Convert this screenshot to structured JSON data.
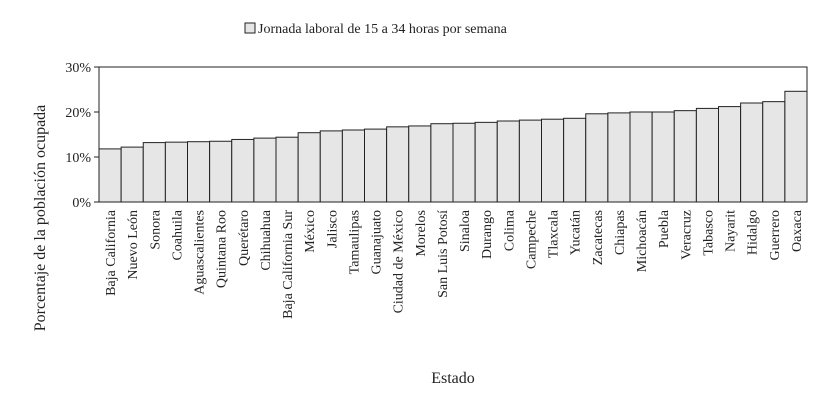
{
  "chart_data": {
    "type": "bar",
    "title": "",
    "xlabel": "Estado",
    "ylabel": "Porcentaje de la población ocupada",
    "legend": {
      "position": "top-center",
      "entries": [
        "Jornada laboral de 15 a 34 horas por semana"
      ]
    },
    "ylim": [
      0,
      30
    ],
    "yticks": [
      0,
      10,
      20,
      30
    ],
    "ytick_suffix": "%",
    "grid": false,
    "colors": {
      "bar_fill": "#e6e6e6",
      "bar_stroke": "#222222",
      "axis": "#222222"
    },
    "series": [
      {
        "name": "Jornada laboral de 15 a 34 horas por semana",
        "values": [
          11.8,
          12.2,
          13.2,
          13.3,
          13.4,
          13.5,
          13.9,
          14.2,
          14.4,
          15.4,
          15.8,
          16.0,
          16.2,
          16.7,
          16.9,
          17.4,
          17.5,
          17.7,
          18.0,
          18.2,
          18.4,
          18.6,
          19.6,
          19.8,
          20.0,
          20.0,
          20.3,
          20.8,
          21.2,
          22.0,
          22.3,
          24.6
        ]
      }
    ],
    "categories": [
      "Baja California",
      "Nuevo León",
      "Sonora",
      "Coahuila",
      "Aguascalientes",
      "Quintana Roo",
      "Querétaro",
      "Chihuahua",
      "Baja California Sur",
      "México",
      "Jalisco",
      "Tamaulipas",
      "Guanajuato",
      "Ciudad de México",
      "Morelos",
      "San Luis Potosí",
      "Sinaloa",
      "Durango",
      "Colima",
      "Campeche",
      "Tlaxcala",
      "Yucatán",
      "Zacatecas",
      "Chiapas",
      "Michoacán",
      "Puebla",
      "Veracruz",
      "Tabasco",
      "Nayarit",
      "Hidalgo",
      "Guerrero",
      "Oaxaca"
    ]
  }
}
